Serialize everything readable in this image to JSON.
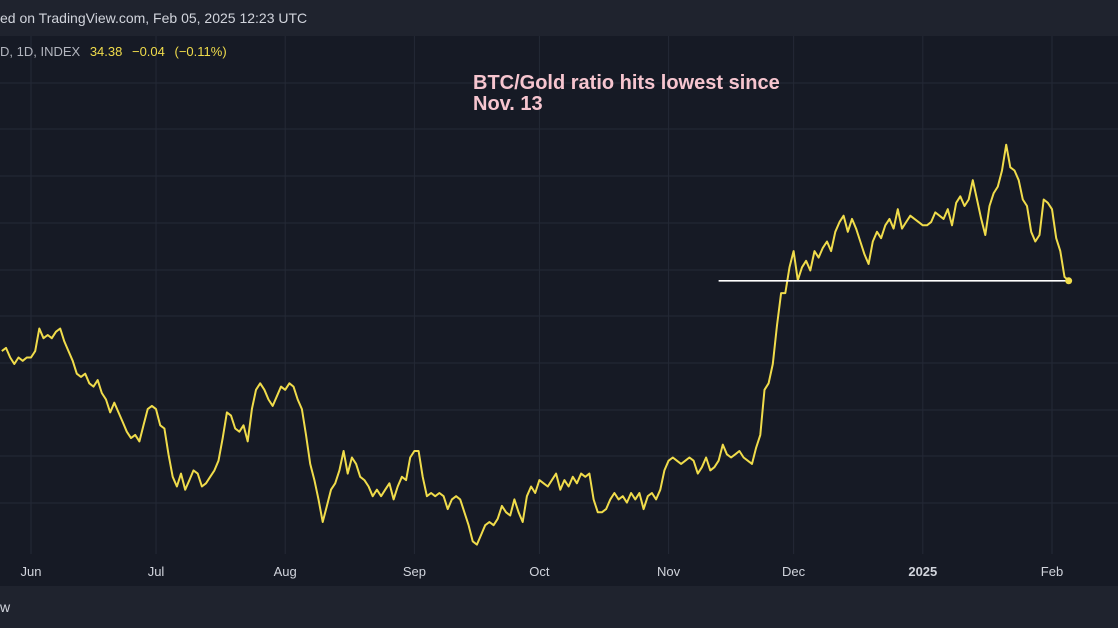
{
  "header": {
    "text": "ed on TradingView.com, Feb 05, 2025 12:23 UTC"
  },
  "footer": {
    "text": "w"
  },
  "legend": {
    "symbol": "D, 1D, INDEX",
    "last": "34.38",
    "change": "−0.04",
    "change_pct": "(−0.11%)"
  },
  "colors": {
    "background": "#161a25",
    "line": "#f0dc4b",
    "annotation": "#f6c5cf",
    "support": "#ffffff",
    "grid": "#242936"
  },
  "chart_data": {
    "type": "line",
    "title": "",
    "annotation": "BTC/Gold ratio hits lowest since Nov. 13",
    "annotation_lines": [
      "BTC/Gold ratio hits lowest since",
      "Nov. 13"
    ],
    "xlabel": "",
    "ylabel": "",
    "x_ticks": [
      {
        "label": "Jun",
        "day": 0,
        "bold": false
      },
      {
        "label": "Jul",
        "day": 30,
        "bold": false
      },
      {
        "label": "Aug",
        "day": 61,
        "bold": false
      },
      {
        "label": "Sep",
        "day": 92,
        "bold": false
      },
      {
        "label": "Oct",
        "day": 122,
        "bold": false
      },
      {
        "label": "Nov",
        "day": 153,
        "bold": false
      },
      {
        "label": "Dec",
        "day": 183,
        "bold": false
      },
      {
        "label": "2025",
        "day": 214,
        "bold": true
      },
      {
        "label": "Feb",
        "day": 245,
        "bold": false
      }
    ],
    "x_range": [
      -7,
      250
    ],
    "ylim": [
      26.0,
      41.6
    ],
    "grid": true,
    "support_level": {
      "value": 34.38,
      "from_day": 165,
      "to_day": 249
    },
    "series": [
      {
        "name": "",
        "values": [
          [
            -7,
            32.2
          ],
          [
            -6,
            32.3
          ],
          [
            -5,
            32.0
          ],
          [
            -4,
            31.8
          ],
          [
            -3,
            32.0
          ],
          [
            -2,
            31.9
          ],
          [
            -1,
            32.0
          ],
          [
            0,
            32.0
          ],
          [
            1,
            32.2
          ],
          [
            2,
            32.9
          ],
          [
            3,
            32.6
          ],
          [
            4,
            32.7
          ],
          [
            5,
            32.6
          ],
          [
            6,
            32.8
          ],
          [
            7,
            32.9
          ],
          [
            8,
            32.5
          ],
          [
            9,
            32.2
          ],
          [
            10,
            31.9
          ],
          [
            11,
            31.5
          ],
          [
            12,
            31.4
          ],
          [
            13,
            31.5
          ],
          [
            14,
            31.2
          ],
          [
            15,
            31.1
          ],
          [
            16,
            31.3
          ],
          [
            17,
            30.9
          ],
          [
            18,
            30.7
          ],
          [
            19,
            30.3
          ],
          [
            20,
            30.6
          ],
          [
            21,
            30.3
          ],
          [
            22,
            30.0
          ],
          [
            23,
            29.7
          ],
          [
            24,
            29.5
          ],
          [
            25,
            29.6
          ],
          [
            26,
            29.4
          ],
          [
            27,
            29.9
          ],
          [
            28,
            30.4
          ],
          [
            29,
            30.5
          ],
          [
            30,
            30.4
          ],
          [
            31,
            29.9
          ],
          [
            32,
            29.8
          ],
          [
            33,
            29.0
          ],
          [
            34,
            28.3
          ],
          [
            35,
            28.0
          ],
          [
            36,
            28.4
          ],
          [
            37,
            27.9
          ],
          [
            38,
            28.2
          ],
          [
            39,
            28.5
          ],
          [
            40,
            28.4
          ],
          [
            41,
            28.0
          ],
          [
            42,
            28.1
          ],
          [
            43,
            28.3
          ],
          [
            44,
            28.5
          ],
          [
            45,
            28.8
          ],
          [
            46,
            29.5
          ],
          [
            47,
            30.3
          ],
          [
            48,
            30.2
          ],
          [
            49,
            29.8
          ],
          [
            50,
            29.7
          ],
          [
            51,
            29.9
          ],
          [
            52,
            29.4
          ],
          [
            53,
            30.4
          ],
          [
            54,
            31.0
          ],
          [
            55,
            31.2
          ],
          [
            56,
            31.0
          ],
          [
            57,
            30.7
          ],
          [
            58,
            30.5
          ],
          [
            59,
            30.8
          ],
          [
            60,
            31.1
          ],
          [
            61,
            31.0
          ],
          [
            62,
            31.2
          ],
          [
            63,
            31.1
          ],
          [
            64,
            30.7
          ],
          [
            65,
            30.4
          ],
          [
            66,
            29.6
          ],
          [
            67,
            28.7
          ],
          [
            68,
            28.2
          ],
          [
            69,
            27.6
          ],
          [
            70,
            26.9
          ],
          [
            71,
            27.4
          ],
          [
            72,
            27.9
          ],
          [
            73,
            28.1
          ],
          [
            74,
            28.5
          ],
          [
            75,
            29.1
          ],
          [
            76,
            28.4
          ],
          [
            77,
            28.9
          ],
          [
            78,
            28.7
          ],
          [
            79,
            28.3
          ],
          [
            80,
            28.2
          ],
          [
            81,
            28.0
          ],
          [
            82,
            27.7
          ],
          [
            83,
            27.9
          ],
          [
            84,
            27.7
          ],
          [
            85,
            27.9
          ],
          [
            86,
            28.1
          ],
          [
            87,
            27.6
          ],
          [
            88,
            28.0
          ],
          [
            89,
            28.3
          ],
          [
            90,
            28.2
          ],
          [
            91,
            28.9
          ],
          [
            92,
            29.1
          ],
          [
            93,
            29.1
          ],
          [
            94,
            28.3
          ],
          [
            95,
            27.7
          ],
          [
            96,
            27.8
          ],
          [
            97,
            27.7
          ],
          [
            98,
            27.8
          ],
          [
            99,
            27.7
          ],
          [
            100,
            27.3
          ],
          [
            101,
            27.6
          ],
          [
            102,
            27.7
          ],
          [
            103,
            27.6
          ],
          [
            104,
            27.2
          ],
          [
            105,
            26.8
          ],
          [
            106,
            26.3
          ],
          [
            107,
            26.2
          ],
          [
            108,
            26.5
          ],
          [
            109,
            26.8
          ],
          [
            110,
            26.9
          ],
          [
            111,
            26.8
          ],
          [
            112,
            27.0
          ],
          [
            113,
            27.4
          ],
          [
            114,
            27.2
          ],
          [
            115,
            27.1
          ],
          [
            116,
            27.6
          ],
          [
            117,
            27.2
          ],
          [
            118,
            26.9
          ],
          [
            119,
            27.7
          ],
          [
            120,
            28.0
          ],
          [
            121,
            27.8
          ],
          [
            122,
            28.2
          ],
          [
            123,
            28.1
          ],
          [
            124,
            28.0
          ],
          [
            125,
            28.2
          ],
          [
            126,
            28.4
          ],
          [
            127,
            27.9
          ],
          [
            128,
            28.2
          ],
          [
            129,
            28.0
          ],
          [
            130,
            28.3
          ],
          [
            131,
            28.1
          ],
          [
            132,
            28.4
          ],
          [
            133,
            28.3
          ],
          [
            134,
            28.4
          ],
          [
            135,
            27.6
          ],
          [
            136,
            27.2
          ],
          [
            137,
            27.2
          ],
          [
            138,
            27.3
          ],
          [
            139,
            27.6
          ],
          [
            140,
            27.8
          ],
          [
            141,
            27.6
          ],
          [
            142,
            27.7
          ],
          [
            143,
            27.5
          ],
          [
            144,
            27.8
          ],
          [
            145,
            27.6
          ],
          [
            146,
            27.8
          ],
          [
            147,
            27.3
          ],
          [
            148,
            27.7
          ],
          [
            149,
            27.8
          ],
          [
            150,
            27.6
          ],
          [
            151,
            27.9
          ],
          [
            152,
            28.5
          ],
          [
            153,
            28.8
          ],
          [
            154,
            28.9
          ],
          [
            155,
            28.8
          ],
          [
            156,
            28.7
          ],
          [
            157,
            28.8
          ],
          [
            158,
            28.9
          ],
          [
            159,
            28.8
          ],
          [
            160,
            28.4
          ],
          [
            161,
            28.6
          ],
          [
            162,
            28.9
          ],
          [
            163,
            28.5
          ],
          [
            164,
            28.6
          ],
          [
            165,
            28.8
          ],
          [
            166,
            29.3
          ],
          [
            167,
            29.0
          ],
          [
            168,
            28.9
          ],
          [
            169,
            29.0
          ],
          [
            170,
            29.1
          ],
          [
            171,
            28.9
          ],
          [
            172,
            28.8
          ],
          [
            173,
            28.7
          ],
          [
            174,
            29.2
          ],
          [
            175,
            29.6
          ],
          [
            176,
            31.0
          ],
          [
            177,
            31.2
          ],
          [
            178,
            31.8
          ],
          [
            179,
            33.0
          ],
          [
            180,
            34.0
          ],
          [
            181,
            34.0
          ],
          [
            182,
            34.8
          ],
          [
            183,
            35.3
          ],
          [
            184,
            34.4
          ],
          [
            185,
            34.8
          ],
          [
            186,
            35.0
          ],
          [
            187,
            34.7
          ],
          [
            188,
            35.3
          ],
          [
            189,
            35.1
          ],
          [
            190,
            35.4
          ],
          [
            191,
            35.6
          ],
          [
            192,
            35.3
          ],
          [
            193,
            35.9
          ],
          [
            194,
            36.2
          ],
          [
            195,
            36.4
          ],
          [
            196,
            35.9
          ],
          [
            197,
            36.3
          ],
          [
            198,
            36.0
          ],
          [
            199,
            35.6
          ],
          [
            200,
            35.2
          ],
          [
            201,
            34.9
          ],
          [
            202,
            35.6
          ],
          [
            203,
            35.9
          ],
          [
            204,
            35.7
          ],
          [
            205,
            36.1
          ],
          [
            206,
            36.3
          ],
          [
            207,
            36.0
          ],
          [
            208,
            36.6
          ],
          [
            209,
            36.0
          ],
          [
            210,
            36.2
          ],
          [
            211,
            36.4
          ],
          [
            212,
            36.3
          ],
          [
            213,
            36.2
          ],
          [
            214,
            36.1
          ],
          [
            215,
            36.1
          ],
          [
            216,
            36.2
          ],
          [
            217,
            36.5
          ],
          [
            218,
            36.4
          ],
          [
            219,
            36.3
          ],
          [
            220,
            36.6
          ],
          [
            221,
            36.1
          ],
          [
            222,
            36.8
          ],
          [
            223,
            37.0
          ],
          [
            224,
            36.7
          ],
          [
            225,
            36.9
          ],
          [
            226,
            37.5
          ],
          [
            227,
            36.9
          ],
          [
            228,
            36.3
          ],
          [
            229,
            35.8
          ],
          [
            230,
            36.7
          ],
          [
            231,
            37.1
          ],
          [
            232,
            37.3
          ],
          [
            233,
            37.8
          ],
          [
            234,
            38.6
          ],
          [
            235,
            37.9
          ],
          [
            236,
            37.8
          ],
          [
            237,
            37.5
          ],
          [
            238,
            36.9
          ],
          [
            239,
            36.7
          ],
          [
            240,
            35.9
          ],
          [
            241,
            35.6
          ],
          [
            242,
            35.8
          ],
          [
            243,
            36.9
          ],
          [
            244,
            36.8
          ],
          [
            245,
            36.6
          ],
          [
            246,
            35.7
          ],
          [
            247,
            35.3
          ],
          [
            248,
            34.5
          ],
          [
            249,
            34.38
          ]
        ]
      }
    ]
  }
}
